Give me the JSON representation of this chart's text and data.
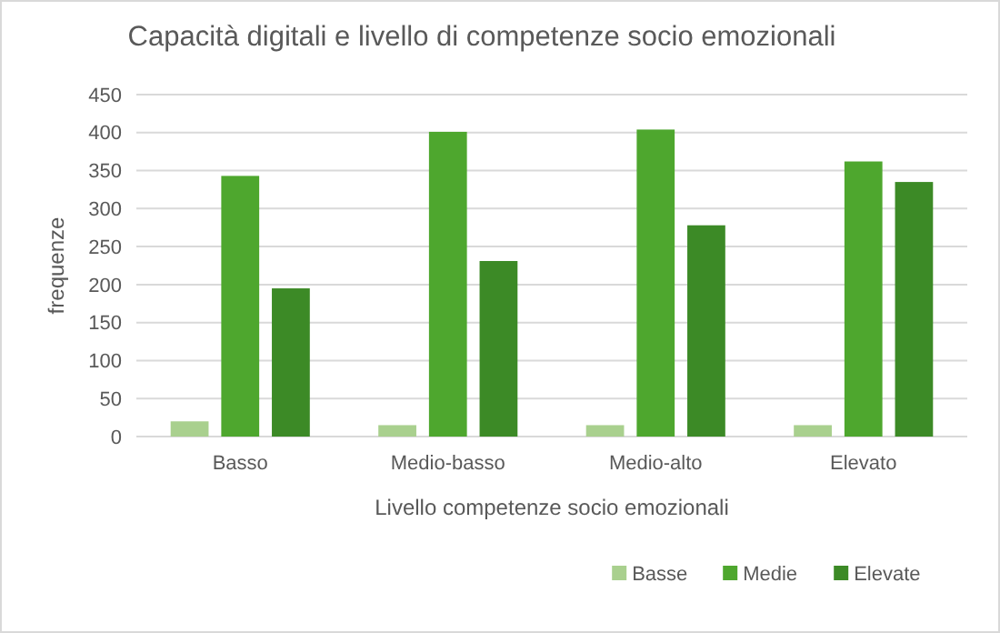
{
  "chart_data": {
    "type": "bar",
    "title": "Capacità digitali e livello di competenze socio emozionali",
    "xlabel": "Livello competenze socio emozionali",
    "ylabel": "frequenze",
    "categories": [
      "Basso",
      "Medio-basso",
      "Medio-alto",
      "Elevato"
    ],
    "series": [
      {
        "name": "Basse",
        "color": "#a9d08e",
        "values": [
          20,
          15,
          15,
          15
        ]
      },
      {
        "name": "Medie",
        "color": "#4ea72e",
        "values": [
          343,
          401,
          404,
          362
        ]
      },
      {
        "name": "Elevate",
        "color": "#3c8a26",
        "values": [
          195,
          231,
          278,
          335
        ]
      }
    ],
    "ylim": [
      0,
      450
    ],
    "yticks": [
      0,
      50,
      100,
      150,
      200,
      250,
      300,
      350,
      400,
      450
    ],
    "grid": "y",
    "legend": "bottom right"
  }
}
